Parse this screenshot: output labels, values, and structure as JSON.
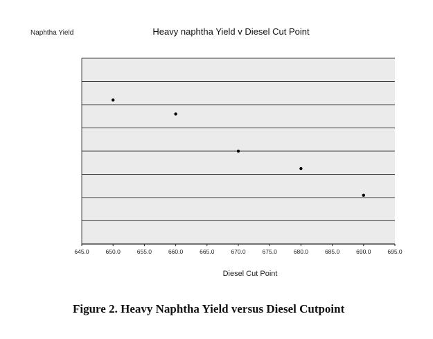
{
  "figure": {
    "caption": "Figure 2. Heavy Naphtha Yield versus Diesel Cutpoint"
  },
  "chart_data": {
    "type": "scatter",
    "title": "Heavy naphtha Yield v  Diesel Cut Point",
    "xlabel": "Diesel Cut Point",
    "ylabel": "Naphtha Yield",
    "xlim": [
      645.0,
      695.0
    ],
    "ylim": [
      0,
      8
    ],
    "grid": true,
    "legend": "none",
    "x_ticks": [
      "645.0",
      "650.0",
      "655.0",
      "660.0",
      "665.0",
      "670.0",
      "675.0",
      "680.0",
      "685.0",
      "690.0",
      "695.0"
    ],
    "y_tick_labels_visible": false,
    "series": [
      {
        "x": [
          650.0,
          660.0,
          670.0,
          680.0,
          690.0
        ],
        "y": [
          6.2,
          5.6,
          4.0,
          3.25,
          2.1
        ]
      }
    ],
    "colors": {
      "plot_background": "#ebebeb",
      "gridline": "#3c3c3c",
      "marker": "#000000"
    }
  }
}
